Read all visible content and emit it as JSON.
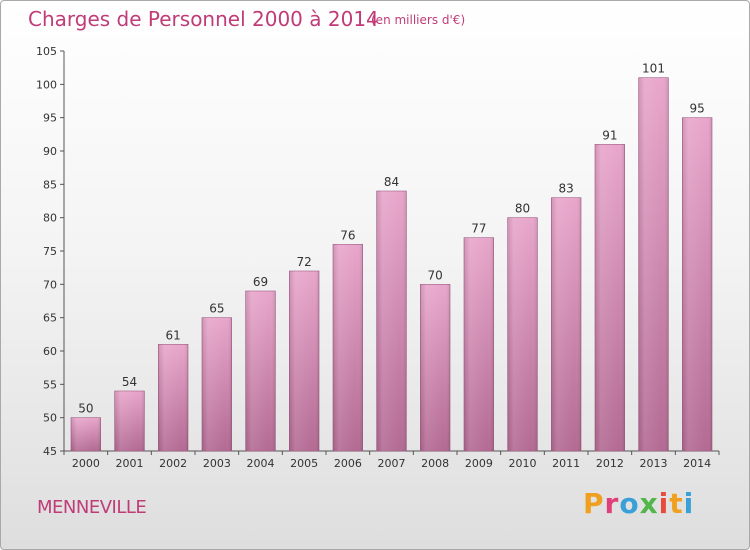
{
  "header": {
    "title": "Charges de Personnel 2000 à 2014",
    "subtitle": "(en milliers d'€)"
  },
  "footer": {
    "commune": "MENNEVILLE",
    "logo_text": "Proxiti"
  },
  "colors": {
    "title": "#c03c78",
    "bar_top": "#e8a6cb",
    "bar_bottom": "#b36a93",
    "axis": "#555555"
  },
  "chart_data": {
    "type": "bar",
    "title": "Charges de Personnel 2000 à 2014",
    "subtitle": "(en milliers d'€)",
    "xlabel": "",
    "ylabel": "",
    "categories": [
      "2000",
      "2001",
      "2002",
      "2003",
      "2004",
      "2005",
      "2006",
      "2007",
      "2008",
      "2009",
      "2010",
      "2011",
      "2012",
      "2013",
      "2014"
    ],
    "values": [
      50,
      54,
      61,
      65,
      69,
      72,
      76,
      84,
      70,
      77,
      80,
      83,
      91,
      101,
      95
    ],
    "ylim": [
      45,
      105
    ],
    "yticks": [
      45,
      50,
      55,
      60,
      65,
      70,
      75,
      80,
      85,
      90,
      95,
      100,
      105
    ],
    "grid": false,
    "legend": "none"
  }
}
